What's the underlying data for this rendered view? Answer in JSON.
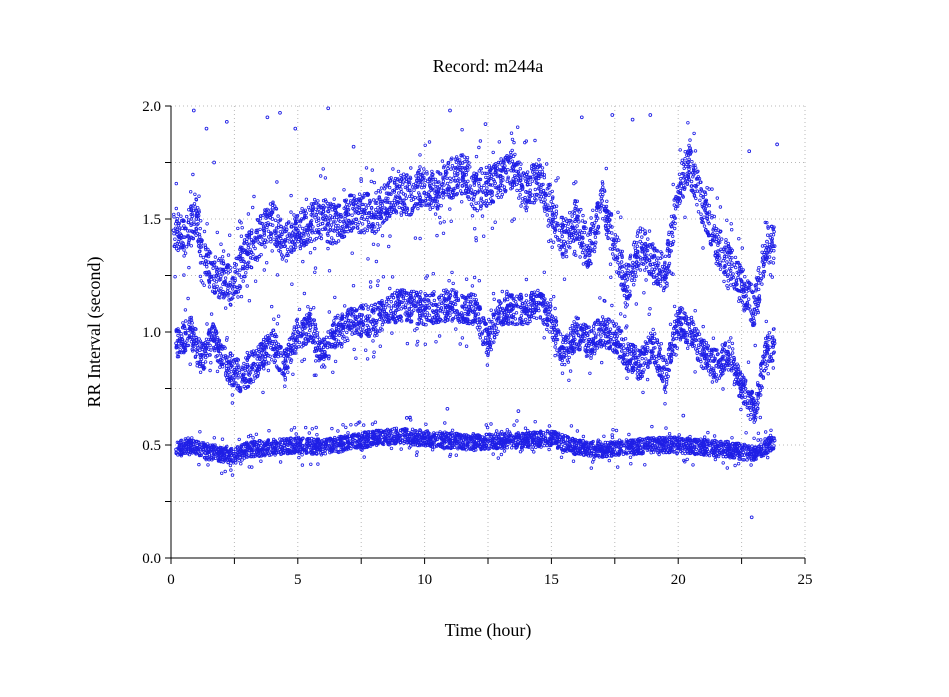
{
  "chart_data": {
    "type": "scatter",
    "title": "Record:  m244a",
    "xlabel": "Time (hour)",
    "ylabel": "RR Interval (second)",
    "xlim": [
      0,
      25
    ],
    "ylim": [
      0,
      2
    ],
    "xticks": [
      0,
      5,
      10,
      15,
      20,
      25
    ],
    "xtick_labels": [
      "0",
      "5",
      "10",
      "15",
      "20",
      "25"
    ],
    "yticks": [
      0,
      0.5,
      1.0,
      1.5,
      2.0
    ],
    "ytick_labels": [
      "0.0",
      "0.5",
      "1.0",
      "1.5",
      "2.0"
    ],
    "grid": true,
    "marker_color": "#1f1fe6",
    "series": [
      {
        "values": [
          [
            0.2,
            0.48
          ],
          [
            0.8,
            0.5
          ],
          [
            1.5,
            0.47
          ],
          [
            2.0,
            0.46
          ],
          [
            2.5,
            0.45
          ],
          [
            3.0,
            0.48
          ],
          [
            4.0,
            0.49
          ],
          [
            5.0,
            0.5
          ],
          [
            6.0,
            0.49
          ],
          [
            7.0,
            0.51
          ],
          [
            8.0,
            0.53
          ],
          [
            9.0,
            0.54
          ],
          [
            10.0,
            0.53
          ],
          [
            11.0,
            0.52
          ],
          [
            12.0,
            0.51
          ],
          [
            13.0,
            0.52
          ],
          [
            14.0,
            0.52
          ],
          [
            15.0,
            0.53
          ],
          [
            16.0,
            0.49
          ],
          [
            17.0,
            0.48
          ],
          [
            18.0,
            0.49
          ],
          [
            19.0,
            0.5
          ],
          [
            20.0,
            0.5
          ],
          [
            21.0,
            0.49
          ],
          [
            22.0,
            0.48
          ],
          [
            23.0,
            0.46
          ],
          [
            23.8,
            0.52
          ]
        ]
      },
      {
        "values": [
          [
            0.2,
            0.95
          ],
          [
            0.8,
            1.0
          ],
          [
            1.2,
            0.88
          ],
          [
            1.6,
            0.98
          ],
          [
            2.2,
            0.85
          ],
          [
            2.8,
            0.8
          ],
          [
            3.5,
            0.88
          ],
          [
            4.0,
            0.95
          ],
          [
            4.5,
            0.85
          ],
          [
            5.0,
            1.0
          ],
          [
            5.5,
            1.02
          ],
          [
            6.0,
            0.9
          ],
          [
            6.5,
            1.0
          ],
          [
            7.0,
            1.03
          ],
          [
            7.5,
            1.05
          ],
          [
            8.0,
            1.05
          ],
          [
            8.5,
            1.08
          ],
          [
            9.0,
            1.12
          ],
          [
            10.0,
            1.1
          ],
          [
            11.0,
            1.12
          ],
          [
            12.0,
            1.1
          ],
          [
            12.5,
            0.95
          ],
          [
            13.0,
            1.1
          ],
          [
            14.0,
            1.1
          ],
          [
            14.5,
            1.13
          ],
          [
            15.0,
            1.05
          ],
          [
            15.5,
            0.9
          ],
          [
            16.0,
            1.0
          ],
          [
            16.5,
            0.95
          ],
          [
            17.0,
            1.0
          ],
          [
            17.5,
            0.98
          ],
          [
            18.0,
            0.9
          ],
          [
            18.5,
            0.85
          ],
          [
            19.0,
            0.95
          ],
          [
            19.5,
            0.8
          ],
          [
            20.0,
            1.05
          ],
          [
            20.5,
            1.0
          ],
          [
            21.0,
            0.9
          ],
          [
            21.5,
            0.85
          ],
          [
            22.0,
            0.9
          ],
          [
            22.5,
            0.75
          ],
          [
            23.0,
            0.65
          ],
          [
            23.5,
            0.92
          ],
          [
            23.8,
            0.95
          ]
        ]
      },
      {
        "values": [
          [
            0.1,
            1.45
          ],
          [
            0.5,
            1.42
          ],
          [
            1.0,
            1.5
          ],
          [
            1.4,
            1.3
          ],
          [
            1.8,
            1.25
          ],
          [
            2.4,
            1.2
          ],
          [
            3.0,
            1.35
          ],
          [
            3.5,
            1.42
          ],
          [
            4.0,
            1.5
          ],
          [
            4.5,
            1.38
          ],
          [
            5.0,
            1.45
          ],
          [
            5.5,
            1.48
          ],
          [
            6.0,
            1.5
          ],
          [
            6.5,
            1.47
          ],
          [
            7.0,
            1.52
          ],
          [
            7.5,
            1.53
          ],
          [
            8.0,
            1.52
          ],
          [
            8.8,
            1.62
          ],
          [
            9.5,
            1.6
          ],
          [
            10.0,
            1.65
          ],
          [
            10.5,
            1.62
          ],
          [
            11.0,
            1.68
          ],
          [
            11.5,
            1.7
          ],
          [
            12.0,
            1.62
          ],
          [
            13.0,
            1.68
          ],
          [
            13.5,
            1.72
          ],
          [
            14.0,
            1.62
          ],
          [
            14.5,
            1.68
          ],
          [
            15.0,
            1.55
          ],
          [
            15.5,
            1.4
          ],
          [
            16.0,
            1.5
          ],
          [
            16.5,
            1.35
          ],
          [
            17.0,
            1.58
          ],
          [
            17.5,
            1.38
          ],
          [
            18.0,
            1.2
          ],
          [
            18.5,
            1.4
          ],
          [
            19.0,
            1.3
          ],
          [
            19.5,
            1.25
          ],
          [
            20.0,
            1.62
          ],
          [
            20.4,
            1.75
          ],
          [
            21.0,
            1.55
          ],
          [
            21.5,
            1.4
          ],
          [
            22.0,
            1.3
          ],
          [
            22.5,
            1.2
          ],
          [
            23.0,
            1.1
          ],
          [
            23.5,
            1.4
          ],
          [
            23.8,
            1.38
          ]
        ]
      },
      {
        "values": [
          [
            0.9,
            1.98
          ],
          [
            1.4,
            1.9
          ],
          [
            1.7,
            1.75
          ],
          [
            2.2,
            1.93
          ],
          [
            3.8,
            1.95
          ],
          [
            4.3,
            1.97
          ],
          [
            4.9,
            1.9
          ],
          [
            6.2,
            1.99
          ],
          [
            7.2,
            1.82
          ],
          [
            11.0,
            1.98
          ],
          [
            12.4,
            1.92
          ],
          [
            16.2,
            1.95
          ],
          [
            17.4,
            1.96
          ],
          [
            18.2,
            1.94
          ],
          [
            18.9,
            1.96
          ],
          [
            22.8,
            1.8
          ],
          [
            23.9,
            1.83
          ],
          [
            22.9,
            0.18
          ],
          [
            9.3,
            0.62
          ],
          [
            13.7,
            0.65
          ],
          [
            10.9,
            0.66
          ],
          [
            20.2,
            0.63
          ]
        ]
      }
    ]
  }
}
